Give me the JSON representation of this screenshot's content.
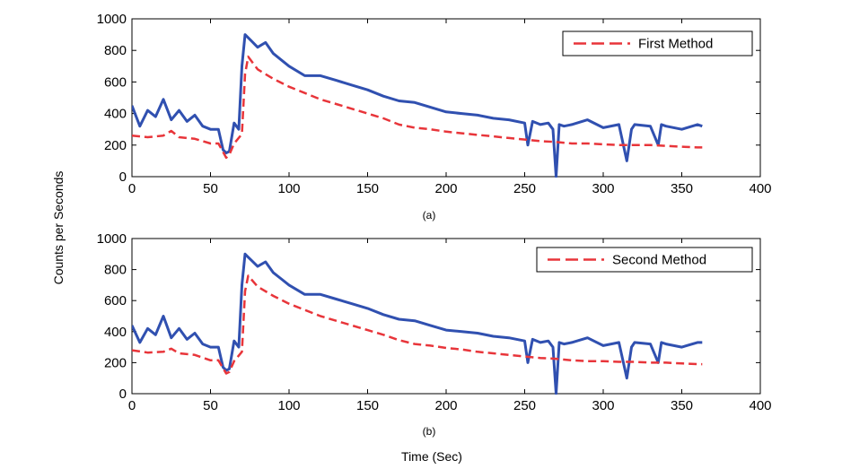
{
  "figure": {
    "ylabel": "Counts per Seconds",
    "xlabel": "Time (Sec)"
  },
  "colors": {
    "blue": "#3050b0",
    "red": "#e8353a",
    "axis": "#000000"
  },
  "chart_data": [
    {
      "type": "line",
      "caption": "(a)",
      "xlim": [
        0,
        400
      ],
      "ylim": [
        0,
        1000
      ],
      "xticks": [
        "0",
        "50",
        "100",
        "150",
        "200",
        "250",
        "300",
        "350",
        "400"
      ],
      "yticks": [
        "0",
        "200",
        "400",
        "600",
        "800",
        "1000"
      ],
      "grid": false,
      "legend_position": "top-right",
      "series": [
        {
          "color": "blue",
          "style": "solid",
          "x": [
            0,
            5,
            10,
            15,
            20,
            25,
            30,
            35,
            40,
            45,
            50,
            55,
            58,
            60,
            62,
            65,
            68,
            70,
            72,
            74,
            76,
            80,
            85,
            90,
            95,
            100,
            110,
            120,
            130,
            140,
            150,
            160,
            170,
            180,
            190,
            200,
            210,
            220,
            230,
            240,
            250,
            252,
            255,
            260,
            265,
            268,
            270,
            272,
            275,
            280,
            290,
            300,
            310,
            315,
            318,
            320,
            330,
            335,
            337,
            340,
            350,
            360,
            363
          ],
          "y": [
            450,
            320,
            420,
            380,
            490,
            360,
            420,
            350,
            390,
            320,
            300,
            300,
            170,
            150,
            160,
            340,
            300,
            700,
            900,
            880,
            860,
            820,
            850,
            780,
            740,
            700,
            640,
            640,
            610,
            580,
            550,
            510,
            480,
            470,
            440,
            410,
            400,
            390,
            370,
            360,
            340,
            200,
            350,
            330,
            340,
            300,
            0,
            330,
            320,
            330,
            360,
            310,
            330,
            100,
            300,
            330,
            320,
            200,
            330,
            320,
            300,
            330,
            320
          ]
        },
        {
          "name": "First Method",
          "color": "red",
          "style": "dashed",
          "x": [
            0,
            10,
            20,
            25,
            30,
            40,
            50,
            55,
            60,
            62,
            65,
            70,
            72,
            74,
            80,
            90,
            100,
            110,
            120,
            130,
            140,
            150,
            160,
            170,
            180,
            190,
            200,
            210,
            220,
            230,
            240,
            250,
            260,
            270,
            280,
            290,
            300,
            310,
            320,
            330,
            340,
            350,
            360,
            363
          ],
          "y": [
            260,
            250,
            260,
            290,
            250,
            240,
            210,
            210,
            120,
            140,
            210,
            270,
            650,
            760,
            680,
            620,
            570,
            530,
            490,
            460,
            430,
            400,
            370,
            330,
            310,
            300,
            285,
            275,
            265,
            255,
            245,
            235,
            225,
            220,
            210,
            210,
            205,
            200,
            200,
            200,
            195,
            190,
            185,
            185
          ]
        }
      ]
    },
    {
      "type": "line",
      "caption": "(b)",
      "xlim": [
        0,
        400
      ],
      "ylim": [
        0,
        1000
      ],
      "xticks": [
        "0",
        "50",
        "100",
        "150",
        "200",
        "250",
        "300",
        "350",
        "400"
      ],
      "yticks": [
        "0",
        "200",
        "400",
        "600",
        "800",
        "1000"
      ],
      "grid": false,
      "legend_position": "top-right",
      "series": [
        {
          "color": "blue",
          "style": "solid",
          "x": [
            0,
            5,
            10,
            15,
            20,
            25,
            30,
            35,
            40,
            45,
            50,
            55,
            58,
            60,
            62,
            65,
            68,
            70,
            72,
            74,
            76,
            80,
            85,
            90,
            95,
            100,
            110,
            120,
            130,
            140,
            150,
            160,
            170,
            180,
            190,
            200,
            210,
            220,
            230,
            240,
            250,
            252,
            255,
            260,
            265,
            268,
            270,
            272,
            275,
            280,
            290,
            300,
            310,
            315,
            318,
            320,
            330,
            335,
            337,
            340,
            350,
            360,
            363
          ],
          "y": [
            440,
            330,
            420,
            380,
            500,
            360,
            420,
            350,
            390,
            320,
            300,
            300,
            170,
            150,
            160,
            340,
            300,
            700,
            900,
            880,
            860,
            820,
            850,
            780,
            740,
            700,
            640,
            640,
            610,
            580,
            550,
            510,
            480,
            470,
            440,
            410,
            400,
            390,
            370,
            360,
            340,
            200,
            350,
            330,
            340,
            300,
            0,
            330,
            320,
            330,
            360,
            310,
            330,
            100,
            300,
            330,
            320,
            200,
            330,
            320,
            300,
            330,
            330
          ]
        },
        {
          "name": "Second Method",
          "color": "red",
          "style": "dashed",
          "x": [
            0,
            10,
            20,
            25,
            30,
            40,
            50,
            55,
            60,
            62,
            65,
            70,
            72,
            74,
            80,
            90,
            100,
            110,
            120,
            130,
            140,
            150,
            160,
            170,
            180,
            190,
            200,
            210,
            220,
            230,
            240,
            250,
            260,
            270,
            280,
            290,
            300,
            310,
            320,
            330,
            340,
            350,
            360,
            363
          ],
          "y": [
            280,
            265,
            270,
            290,
            260,
            250,
            215,
            215,
            130,
            140,
            210,
            270,
            660,
            760,
            690,
            630,
            580,
            540,
            500,
            470,
            440,
            410,
            380,
            345,
            320,
            310,
            295,
            285,
            270,
            260,
            250,
            240,
            230,
            225,
            215,
            210,
            210,
            205,
            205,
            200,
            200,
            195,
            190,
            190
          ]
        }
      ]
    }
  ]
}
